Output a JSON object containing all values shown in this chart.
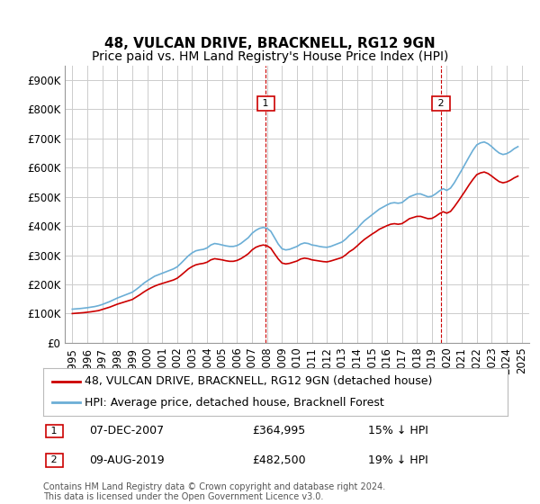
{
  "title": "48, VULCAN DRIVE, BRACKNELL, RG12 9GN",
  "subtitle": "Price paid vs. HM Land Registry's House Price Index (HPI)",
  "ylabel_ticks": [
    "£0",
    "£100K",
    "£200K",
    "£300K",
    "£400K",
    "£500K",
    "£600K",
    "£700K",
    "£800K",
    "£900K"
  ],
  "ytick_values": [
    0,
    100000,
    200000,
    300000,
    400000,
    500000,
    600000,
    700000,
    800000,
    900000
  ],
  "ylim": [
    0,
    950000
  ],
  "xlim_start": 1994.5,
  "xlim_end": 2025.5,
  "xticks": [
    1995,
    1996,
    1997,
    1998,
    1999,
    2000,
    2001,
    2002,
    2003,
    2004,
    2005,
    2006,
    2007,
    2008,
    2009,
    2010,
    2011,
    2012,
    2013,
    2014,
    2015,
    2016,
    2017,
    2018,
    2019,
    2020,
    2021,
    2022,
    2023,
    2024,
    2025
  ],
  "hpi_color": "#6baed6",
  "price_color": "#cc0000",
  "annotation_color": "#cc0000",
  "grid_color": "#cccccc",
  "bg_color": "#ffffff",
  "legend_box_color": "#000000",
  "title_fontsize": 11,
  "subtitle_fontsize": 10,
  "tick_fontsize": 8.5,
  "legend_fontsize": 9,
  "annotation_label1": "07-DEC-2007",
  "annotation_price1": "£364,995",
  "annotation_pct1": "15% ↓ HPI",
  "annotation_label2": "09-AUG-2019",
  "annotation_price2": "£482,500",
  "annotation_pct2": "19% ↓ HPI",
  "sale1_x": 2007.92,
  "sale1_y": 364995,
  "sale2_x": 2019.6,
  "sale2_y": 482500,
  "hpi_x": [
    1995.0,
    1995.25,
    1995.5,
    1995.75,
    1996.0,
    1996.25,
    1996.5,
    1996.75,
    1997.0,
    1997.25,
    1997.5,
    1997.75,
    1998.0,
    1998.25,
    1998.5,
    1998.75,
    1999.0,
    1999.25,
    1999.5,
    1999.75,
    2000.0,
    2000.25,
    2000.5,
    2000.75,
    2001.0,
    2001.25,
    2001.5,
    2001.75,
    2002.0,
    2002.25,
    2002.5,
    2002.75,
    2003.0,
    2003.25,
    2003.5,
    2003.75,
    2004.0,
    2004.25,
    2004.5,
    2004.75,
    2005.0,
    2005.25,
    2005.5,
    2005.75,
    2006.0,
    2006.25,
    2006.5,
    2006.75,
    2007.0,
    2007.25,
    2007.5,
    2007.75,
    2008.0,
    2008.25,
    2008.5,
    2008.75,
    2009.0,
    2009.25,
    2009.5,
    2009.75,
    2010.0,
    2010.25,
    2010.5,
    2010.75,
    2011.0,
    2011.25,
    2011.5,
    2011.75,
    2012.0,
    2012.25,
    2012.5,
    2012.75,
    2013.0,
    2013.25,
    2013.5,
    2013.75,
    2014.0,
    2014.25,
    2014.5,
    2014.75,
    2015.0,
    2015.25,
    2015.5,
    2015.75,
    2016.0,
    2016.25,
    2016.5,
    2016.75,
    2017.0,
    2017.25,
    2017.5,
    2017.75,
    2018.0,
    2018.25,
    2018.5,
    2018.75,
    2019.0,
    2019.25,
    2019.5,
    2019.75,
    2020.0,
    2020.25,
    2020.5,
    2020.75,
    2021.0,
    2021.25,
    2021.5,
    2021.75,
    2022.0,
    2022.25,
    2022.5,
    2022.75,
    2023.0,
    2023.25,
    2023.5,
    2023.75,
    2024.0,
    2024.25,
    2024.5,
    2024.75
  ],
  "hpi_y": [
    115000,
    116000,
    117000,
    118500,
    120000,
    122000,
    124000,
    127000,
    131000,
    136000,
    141000,
    147000,
    153000,
    158000,
    163000,
    168000,
    173000,
    182000,
    192000,
    203000,
    212000,
    220000,
    228000,
    233000,
    238000,
    243000,
    248000,
    253000,
    260000,
    272000,
    285000,
    298000,
    308000,
    315000,
    318000,
    320000,
    325000,
    335000,
    340000,
    338000,
    335000,
    332000,
    330000,
    330000,
    333000,
    340000,
    350000,
    360000,
    375000,
    385000,
    392000,
    395000,
    392000,
    382000,
    360000,
    338000,
    322000,
    318000,
    320000,
    325000,
    330000,
    338000,
    342000,
    340000,
    335000,
    333000,
    330000,
    328000,
    327000,
    330000,
    335000,
    340000,
    345000,
    355000,
    368000,
    378000,
    390000,
    405000,
    418000,
    428000,
    438000,
    448000,
    458000,
    465000,
    472000,
    478000,
    480000,
    478000,
    480000,
    490000,
    500000,
    505000,
    510000,
    510000,
    505000,
    500000,
    502000,
    510000,
    520000,
    528000,
    522000,
    530000,
    548000,
    570000,
    592000,
    615000,
    638000,
    660000,
    678000,
    685000,
    688000,
    682000,
    672000,
    660000,
    650000,
    645000,
    648000,
    655000,
    665000,
    672000
  ],
  "price_x": [
    1995.0,
    1995.25,
    1995.5,
    1995.75,
    1996.0,
    1996.25,
    1996.5,
    1996.75,
    1997.0,
    1997.25,
    1997.5,
    1997.75,
    1998.0,
    1998.25,
    1998.5,
    1998.75,
    1999.0,
    1999.25,
    1999.5,
    1999.75,
    2000.0,
    2000.25,
    2000.5,
    2000.75,
    2001.0,
    2001.25,
    2001.5,
    2001.75,
    2002.0,
    2002.25,
    2002.5,
    2002.75,
    2003.0,
    2003.25,
    2003.5,
    2003.75,
    2004.0,
    2004.25,
    2004.5,
    2004.75,
    2005.0,
    2005.25,
    2005.5,
    2005.75,
    2006.0,
    2006.25,
    2006.5,
    2006.75,
    2007.0,
    2007.25,
    2007.5,
    2007.75,
    2008.0,
    2008.25,
    2008.5,
    2008.75,
    2009.0,
    2009.25,
    2009.5,
    2009.75,
    2010.0,
    2010.25,
    2010.5,
    2010.75,
    2011.0,
    2011.25,
    2011.5,
    2011.75,
    2012.0,
    2012.25,
    2012.5,
    2012.75,
    2013.0,
    2013.25,
    2013.5,
    2013.75,
    2014.0,
    2014.25,
    2014.5,
    2014.75,
    2015.0,
    2015.25,
    2015.5,
    2015.75,
    2016.0,
    2016.25,
    2016.5,
    2016.75,
    2017.0,
    2017.25,
    2017.5,
    2017.75,
    2018.0,
    2018.25,
    2018.5,
    2018.75,
    2019.0,
    2019.25,
    2019.5,
    2019.75,
    2020.0,
    2020.25,
    2020.5,
    2020.75,
    2021.0,
    2021.25,
    2021.5,
    2021.75,
    2022.0,
    2022.25,
    2022.5,
    2022.75,
    2023.0,
    2023.25,
    2023.5,
    2023.75,
    2024.0,
    2024.25,
    2024.5,
    2024.75
  ],
  "price_y": [
    100000,
    101000,
    102000,
    103000,
    104500,
    106000,
    108000,
    110000,
    114000,
    118000,
    122000,
    127000,
    132000,
    136000,
    140000,
    144000,
    148000,
    156000,
    164000,
    173000,
    181000,
    188000,
    194000,
    199000,
    203000,
    207000,
    211000,
    215000,
    221000,
    231000,
    242000,
    253000,
    261000,
    267000,
    270000,
    272000,
    276000,
    284000,
    288000,
    286000,
    284000,
    281000,
    279000,
    279000,
    282000,
    288000,
    296000,
    305000,
    318000,
    327000,
    332000,
    335000,
    332000,
    324000,
    305000,
    287000,
    273000,
    270000,
    272000,
    276000,
    280000,
    287000,
    290000,
    288000,
    284000,
    282000,
    280000,
    278000,
    277000,
    280000,
    284000,
    288000,
    292000,
    301000,
    312000,
    320000,
    331000,
    343000,
    354000,
    363000,
    372000,
    380000,
    389000,
    395000,
    401000,
    406000,
    408000,
    406000,
    408000,
    416000,
    425000,
    429000,
    433000,
    433000,
    429000,
    425000,
    426000,
    433000,
    442000,
    449000,
    444000,
    450000,
    466000,
    484000,
    503000,
    522000,
    542000,
    560000,
    576000,
    582000,
    585000,
    580000,
    571000,
    561000,
    552000,
    548000,
    551000,
    557000,
    565000,
    571000
  ],
  "footnote": "Contains HM Land Registry data © Crown copyright and database right 2024.\nThis data is licensed under the Open Government Licence v3.0.",
  "legend_label1": "48, VULCAN DRIVE, BRACKNELL, RG12 9GN (detached house)",
  "legend_label2": "HPI: Average price, detached house, Bracknell Forest"
}
